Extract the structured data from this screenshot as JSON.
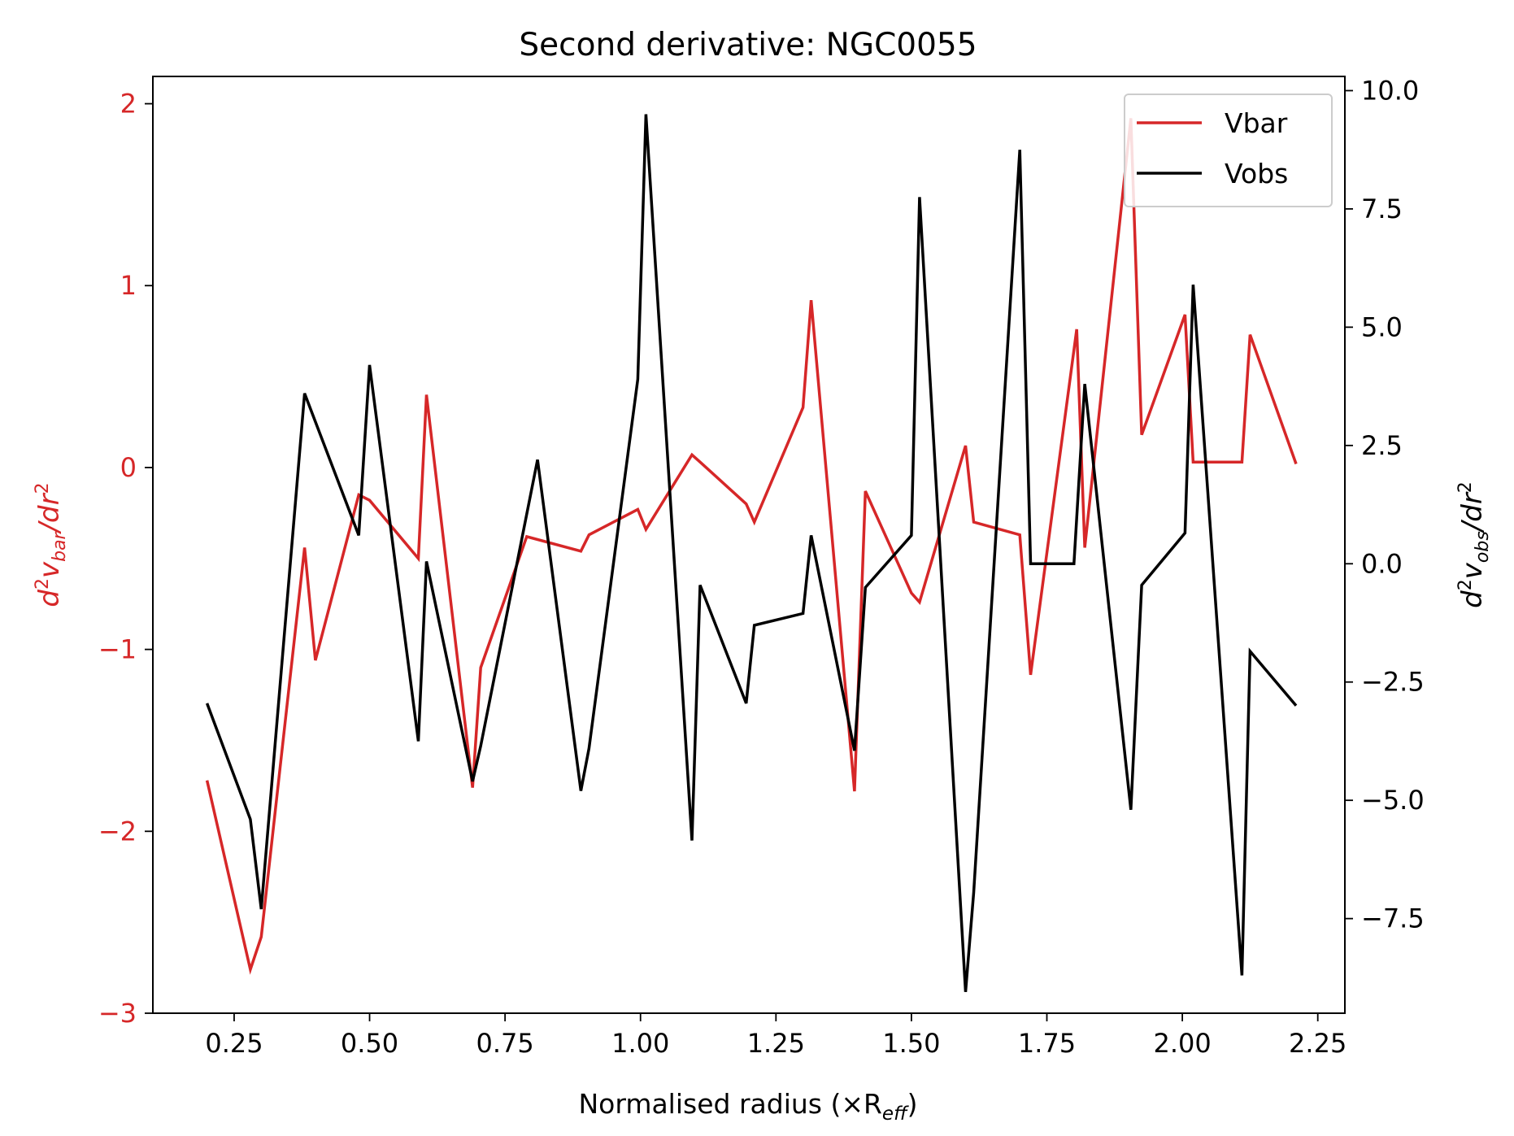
{
  "chart_data": {
    "type": "line",
    "title": "Second derivative: NGC0055",
    "xlabel": "Normalised radius (×R",
    "xlabel_sub": "eff",
    "xlabel_close": ")",
    "ylabel_left": {
      "base": "d",
      "sup1": "2",
      "v": "v",
      "sub": "bar",
      "slash": "/dr",
      "sup2": "2"
    },
    "ylabel_right": {
      "base": "d",
      "sup1": "2",
      "v": "v",
      "sub": "obs",
      "slash": "/dr",
      "sup2": "2"
    },
    "xlim": [
      0.1,
      2.3
    ],
    "ylim_left": [
      -3.0,
      2.15
    ],
    "ylim_right": [
      -9.5,
      10.3
    ],
    "xticks": [
      "0.25",
      "0.50",
      "0.75",
      "1.00",
      "1.25",
      "1.50",
      "1.75",
      "2.00",
      "2.25"
    ],
    "yticks_left": [
      "2",
      "1",
      "0",
      "−1",
      "−2",
      "−3"
    ],
    "yticks_right": [
      "10.0",
      "7.5",
      "5.0",
      "2.5",
      "0.0",
      "−2.5",
      "−5.0",
      "−7.5"
    ],
    "legend_position": "top-right",
    "colors": {
      "vbar": "#d62728",
      "vobs": "#000000"
    },
    "series": [
      {
        "name": "Vbar",
        "axis": "left",
        "x": [
          0.2,
          0.28,
          0.3,
          0.38,
          0.4,
          0.48,
          0.5,
          0.59,
          0.605,
          0.69,
          0.705,
          0.79,
          0.89,
          0.905,
          0.995,
          1.01,
          1.095,
          1.11,
          1.195,
          1.21,
          1.3,
          1.315,
          1.395,
          1.415,
          1.5,
          1.515,
          1.6,
          1.615,
          1.7,
          1.72,
          1.805,
          1.82,
          1.905,
          1.925,
          2.005,
          2.02,
          2.11,
          2.125,
          2.21
        ],
        "values": [
          -1.72,
          -2.76,
          -2.58,
          -0.44,
          -1.06,
          -0.15,
          -0.18,
          -0.5,
          0.4,
          -1.76,
          -1.1,
          -0.38,
          -0.46,
          -0.37,
          -0.23,
          -0.34,
          0.07,
          0.03,
          -0.2,
          -0.3,
          0.33,
          0.92,
          -1.78,
          -0.13,
          -0.69,
          -0.74,
          0.12,
          -0.3,
          -0.37,
          -1.14,
          0.76,
          -0.44,
          1.92,
          0.18,
          0.84,
          0.03,
          0.03,
          0.73,
          0.02
        ]
      },
      {
        "name": "Vobs",
        "axis": "right",
        "x": [
          0.2,
          0.28,
          0.3,
          0.38,
          0.48,
          0.5,
          0.59,
          0.605,
          0.69,
          0.705,
          0.81,
          0.89,
          0.905,
          0.995,
          1.01,
          1.095,
          1.11,
          1.195,
          1.21,
          1.3,
          1.315,
          1.395,
          1.415,
          1.5,
          1.515,
          1.6,
          1.615,
          1.7,
          1.72,
          1.8,
          1.82,
          1.905,
          1.925,
          2.005,
          2.02,
          2.11,
          2.125,
          2.21
        ],
        "values": [
          -2.95,
          -5.4,
          -7.3,
          3.6,
          0.6,
          4.2,
          -3.75,
          0.05,
          -4.6,
          -3.85,
          2.2,
          -4.8,
          -3.9,
          3.9,
          9.5,
          -5.85,
          -0.45,
          -2.95,
          -1.3,
          -1.05,
          0.6,
          -3.95,
          -0.5,
          0.6,
          7.75,
          -9.05,
          -6.95,
          8.75,
          0.0,
          0.0,
          3.8,
          -5.2,
          -0.45,
          0.65,
          5.9,
          -8.7,
          -1.85,
          -3.0
        ]
      }
    ]
  }
}
